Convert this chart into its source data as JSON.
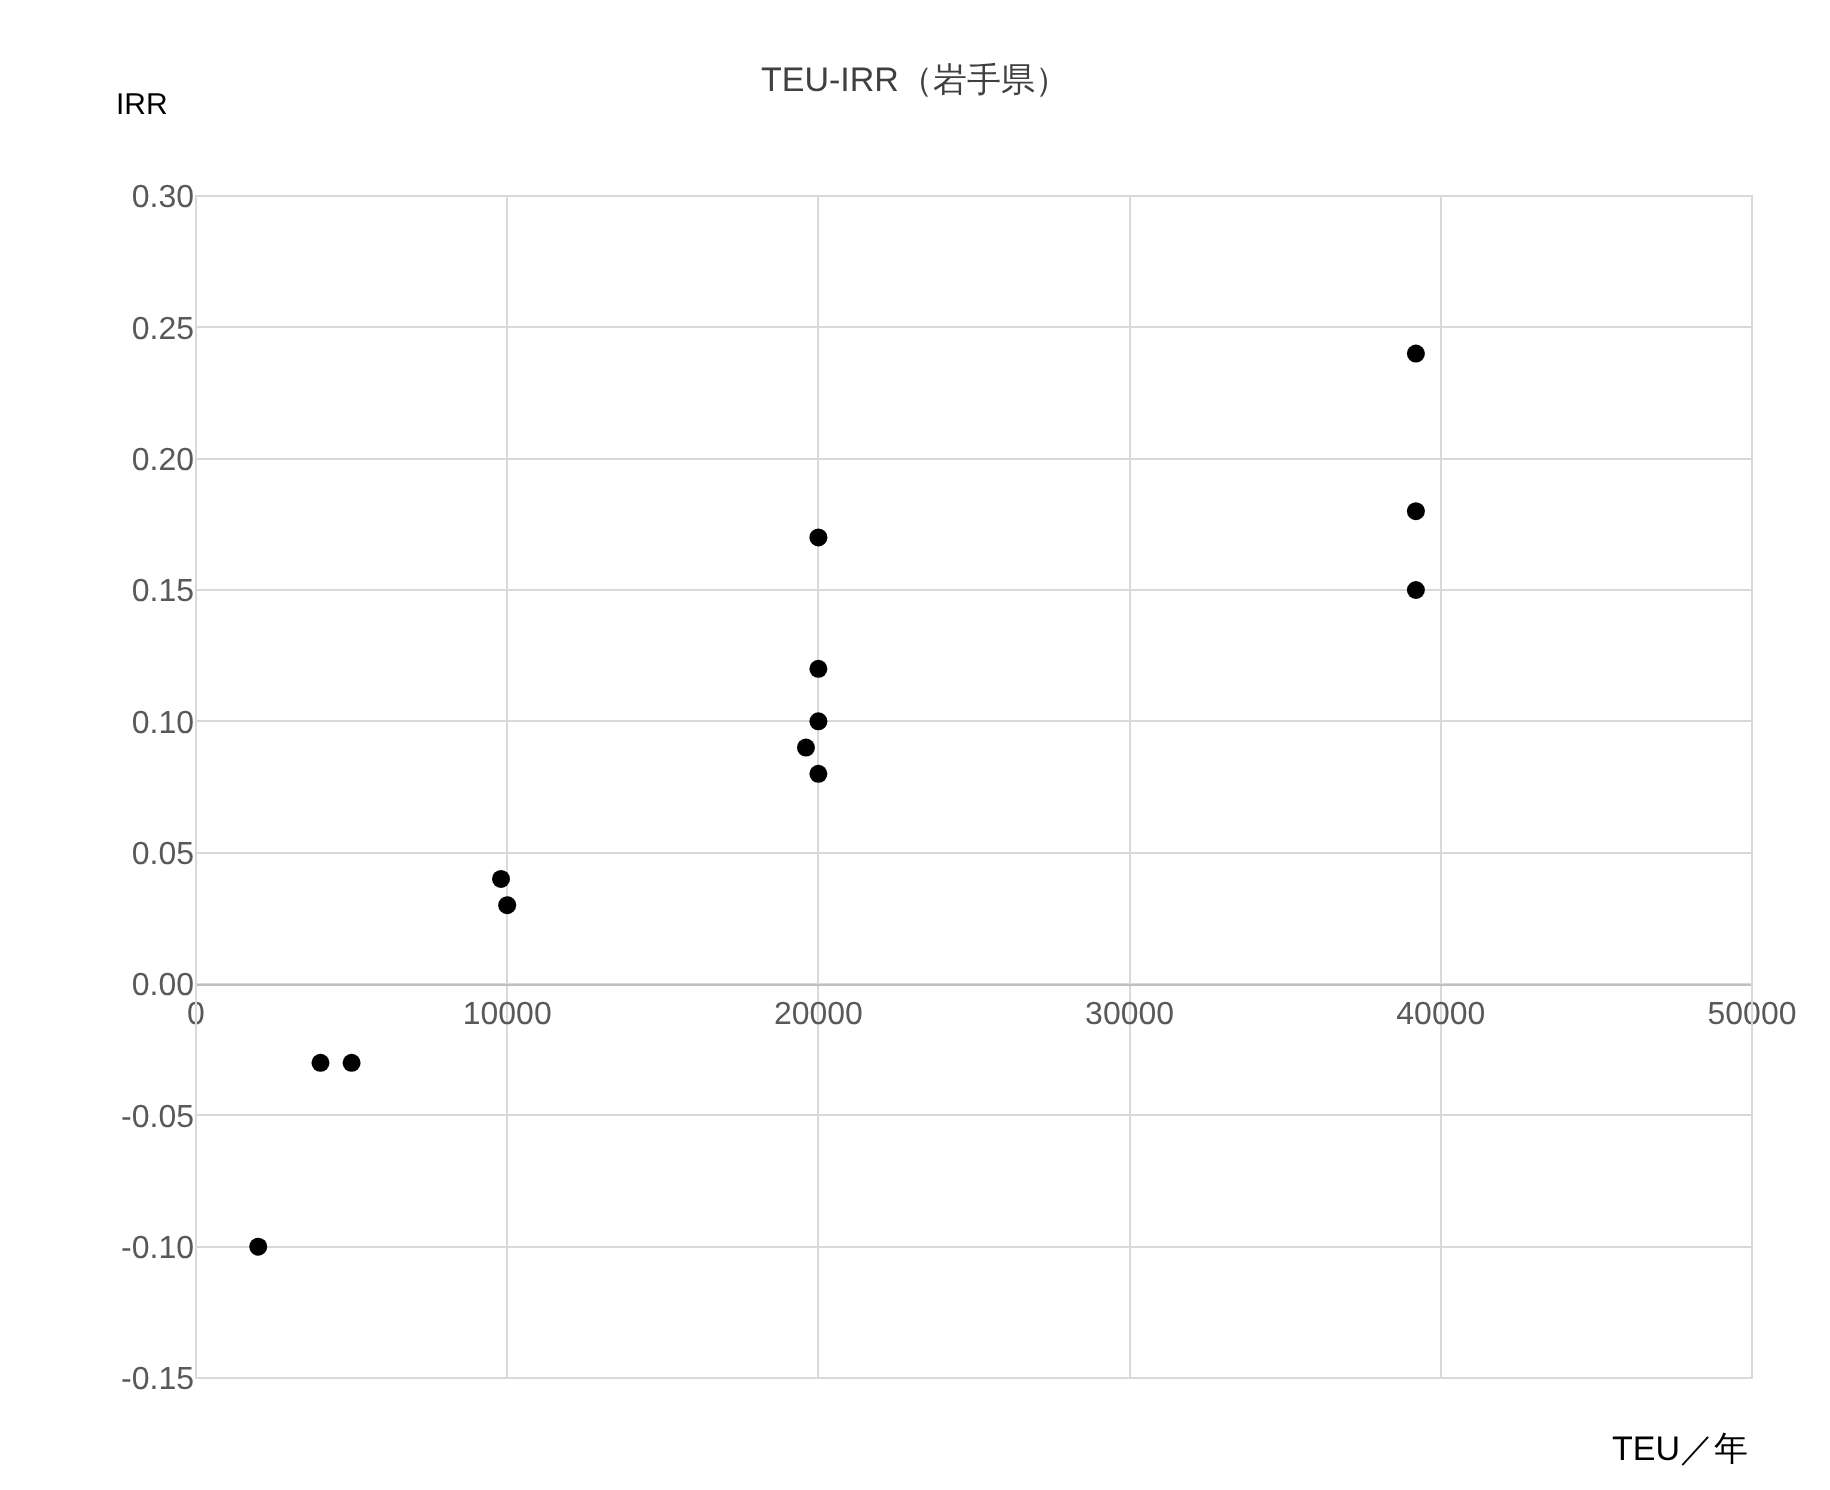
{
  "chart_data": {
    "type": "scatter",
    "title": "TEU-IRR（岩手県）",
    "xlabel": "TEU／年",
    "ylabel": "IRR",
    "x": [
      2000,
      4000,
      5000,
      9800,
      10000,
      20000,
      20000,
      20000,
      19600,
      20000,
      39200,
      39200,
      39200
    ],
    "series": [
      {
        "color": "#000000",
        "values": [
          -0.1,
          -0.03,
          -0.03,
          0.04,
          0.03,
          0.17,
          0.12,
          0.1,
          0.09,
          0.08,
          0.24,
          0.18,
          0.15
        ]
      }
    ],
    "xlim": [
      0,
      50000
    ],
    "xticks": [
      0,
      10000,
      20000,
      30000,
      40000,
      50000
    ],
    "ylim": [
      -0.15,
      0.3
    ],
    "yticks": [
      {
        "value": -0.15,
        "label": "-0.15"
      },
      {
        "value": -0.1,
        "label": "-0.10"
      },
      {
        "value": -0.05,
        "label": "-0.05"
      },
      {
        "value": 0,
        "label": "0.00"
      },
      {
        "value": 0.05,
        "label": "0.05"
      },
      {
        "value": 0.1,
        "label": "0.10"
      },
      {
        "value": 0.15,
        "label": "0.15"
      },
      {
        "value": 0.2,
        "label": "0.20"
      },
      {
        "value": 0.25,
        "label": "0.25"
      },
      {
        "value": 0.3,
        "label": "0.30"
      }
    ],
    "grid": true,
    "marker": "circle"
  }
}
